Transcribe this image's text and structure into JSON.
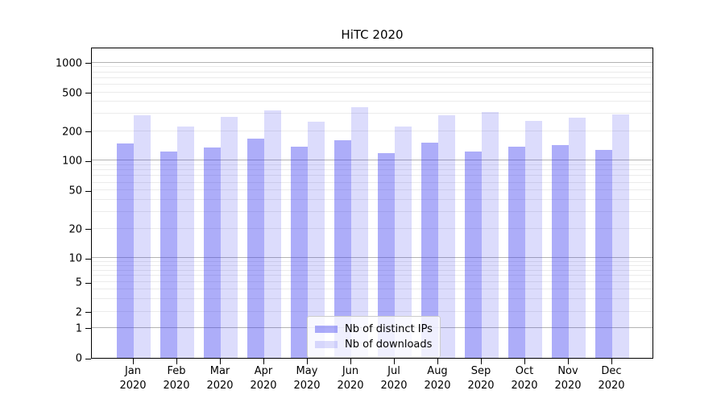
{
  "title": "HiTC 2020",
  "colors": {
    "distinct_ips_fill": "rgba(60,60,240,0.42)",
    "downloads_fill": "rgba(60,60,240,0.18)",
    "major_grid": "#b3b3b3",
    "minor_grid": "#ebebeb",
    "spine": "#000000"
  },
  "chart_data": {
    "type": "bar",
    "title": "HiTC 2020",
    "categories": [
      "Jan 2020",
      "Feb 2020",
      "Mar 2020",
      "Apr 2020",
      "May 2020",
      "Jun 2020",
      "Jul 2020",
      "Aug 2020",
      "Sep 2020",
      "Oct 2020",
      "Nov 2020",
      "Dec 2020"
    ],
    "series": [
      {
        "name": "Nb of distinct IPs",
        "values": [
          150,
          123,
          137,
          168,
          139,
          161,
          119,
          152,
          125,
          139,
          145,
          129
        ]
      },
      {
        "name": "Nb of downloads",
        "values": [
          293,
          221,
          279,
          325,
          251,
          350,
          222,
          291,
          312,
          256,
          274,
          299
        ]
      }
    ],
    "xlabel": "",
    "ylabel": "",
    "yscale": "pseudo-log",
    "yticks": [
      0,
      1,
      2,
      5,
      10,
      20,
      50,
      100,
      200,
      500,
      1000
    ],
    "ylim": [
      0,
      1430
    ],
    "grid": "both (major gray, minor light)",
    "legend_position": "lower center"
  }
}
